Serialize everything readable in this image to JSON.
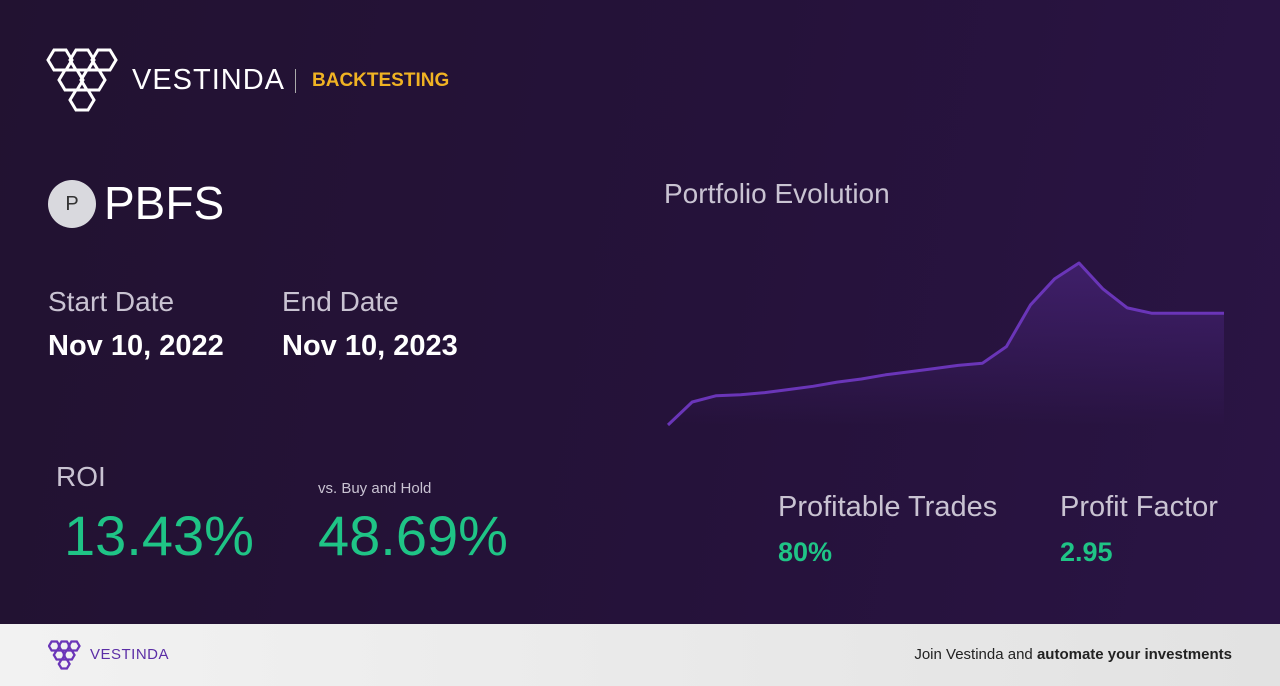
{
  "header": {
    "brand": "VESTINDA",
    "section": "BACKTESTING"
  },
  "ticker": {
    "icon": "P",
    "symbol": "PBFS"
  },
  "dates": {
    "start_label": "Start Date",
    "start": "Nov 10, 2022",
    "end_label": "End Date",
    "end": "Nov 10, 2023"
  },
  "roi": {
    "label": "ROI",
    "value": "13.43%",
    "vs_label": "vs. Buy and Hold",
    "vs_value": "48.69%"
  },
  "stats": {
    "profitable_label": "Profitable Trades",
    "profitable_value": "80%",
    "factor_label": "Profit Factor",
    "factor_value": "2.95"
  },
  "chart_data": {
    "type": "line",
    "title": "Portfolio Evolution",
    "color": "#6a35b8",
    "values": [
      0,
      22,
      28,
      29,
      31,
      34,
      37,
      41,
      44,
      48,
      51,
      54,
      57,
      59,
      75,
      115,
      140,
      155,
      130,
      112,
      107,
      107,
      107,
      107
    ]
  },
  "footer": {
    "brand": "VESTINDA",
    "text": "Join Vestinda and",
    "bold": "automate your investments"
  }
}
